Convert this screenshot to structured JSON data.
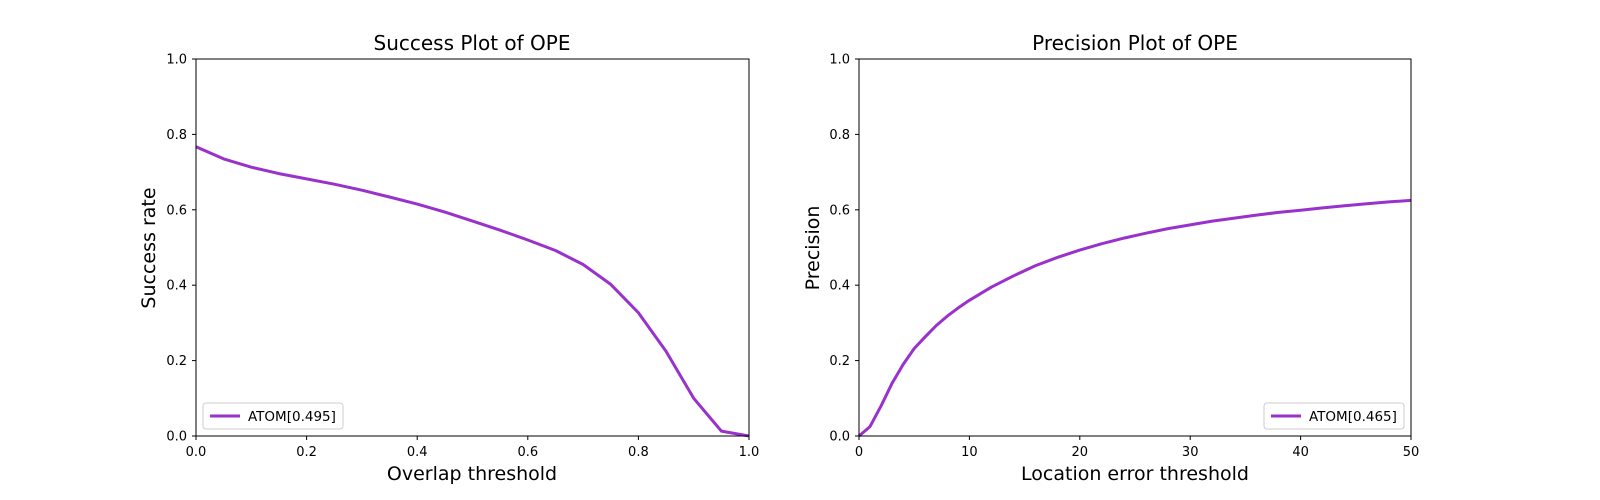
{
  "chart_data": [
    {
      "type": "line",
      "title": "Success Plot of OPE",
      "xlabel": "Overlap threshold",
      "ylabel": "Success rate",
      "xlim": [
        0,
        1
      ],
      "ylim": [
        0,
        1
      ],
      "xticks": [
        "0.0",
        "0.2",
        "0.4",
        "0.6",
        "0.8",
        "1.0"
      ],
      "yticks": [
        "0.0",
        "0.2",
        "0.4",
        "0.6",
        "0.8",
        "1.0"
      ],
      "grid": false,
      "legend_position": "bottom-left",
      "series": [
        {
          "name": "ATOM[0.495]",
          "color": "#9932CC",
          "x": [
            0.0,
            0.05,
            0.1,
            0.15,
            0.2,
            0.25,
            0.3,
            0.35,
            0.4,
            0.45,
            0.5,
            0.55,
            0.6,
            0.65,
            0.7,
            0.75,
            0.8,
            0.85,
            0.9,
            0.95,
            1.0
          ],
          "y": [
            0.767,
            0.735,
            0.713,
            0.696,
            0.682,
            0.668,
            0.652,
            0.634,
            0.615,
            0.594,
            0.57,
            0.546,
            0.52,
            0.492,
            0.455,
            0.402,
            0.327,
            0.225,
            0.1,
            0.013,
            0.0
          ]
        }
      ]
    },
    {
      "type": "line",
      "title": "Precision Plot of OPE",
      "xlabel": "Location error threshold",
      "ylabel": "Precision",
      "xlim": [
        0,
        50
      ],
      "ylim": [
        0,
        1
      ],
      "xticks": [
        "0",
        "10",
        "20",
        "30",
        "40",
        "50"
      ],
      "yticks": [
        "0.0",
        "0.2",
        "0.4",
        "0.6",
        "0.8",
        "1.0"
      ],
      "grid": false,
      "legend_position": "bottom-right",
      "series": [
        {
          "name": "ATOM[0.465]",
          "color": "#9932CC",
          "x": [
            0,
            1,
            2,
            3,
            4,
            5,
            6,
            7,
            8,
            9,
            10,
            12,
            14,
            16,
            18,
            20,
            22,
            24,
            26,
            28,
            30,
            32,
            34,
            36,
            38,
            40,
            42,
            44,
            46,
            48,
            50
          ],
          "y": [
            0.0,
            0.025,
            0.08,
            0.14,
            0.19,
            0.232,
            0.263,
            0.293,
            0.318,
            0.34,
            0.36,
            0.395,
            0.425,
            0.452,
            0.474,
            0.493,
            0.51,
            0.525,
            0.538,
            0.55,
            0.56,
            0.57,
            0.578,
            0.586,
            0.593,
            0.599,
            0.605,
            0.611,
            0.616,
            0.621,
            0.625
          ]
        }
      ]
    }
  ]
}
